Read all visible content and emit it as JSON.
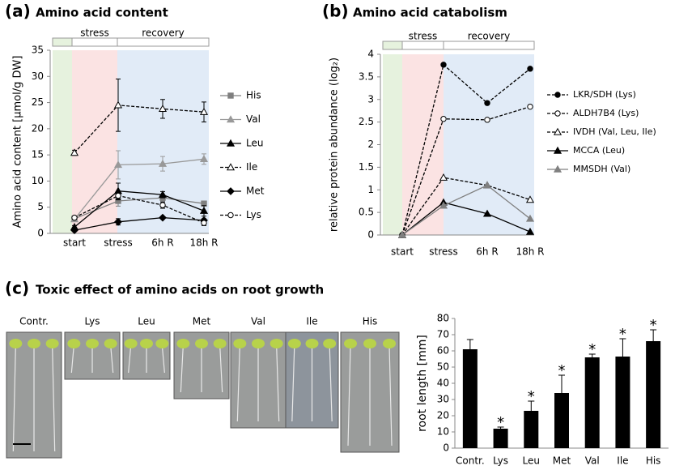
{
  "chart_data": [
    {
      "type": "line",
      "panel": "(a)",
      "title": "Amino acid content",
      "y_label": "Amino acid content [μmol/g DW]",
      "phases": [
        "stress",
        "recovery"
      ],
      "categories": [
        "start",
        "stress",
        "6h R",
        "18h R"
      ],
      "ylim": [
        0,
        35
      ],
      "yticks": [
        0,
        5,
        10,
        15,
        20,
        25,
        30,
        35
      ],
      "series": [
        {
          "name": "His",
          "color": "#7f7f7f",
          "marker": "square",
          "marker_fill": "#7f7f7f",
          "dashed": false,
          "values": [
            2.8,
            6.2,
            6.8,
            5.7
          ],
          "errors": [
            0.3,
            1.0,
            0.6,
            0.3
          ]
        },
        {
          "name": "Val",
          "color": "#999999",
          "marker": "triangle",
          "marker_fill": "#999999",
          "dashed": false,
          "values": [
            2.7,
            13.1,
            13.3,
            14.2
          ],
          "errors": [
            0.3,
            2.7,
            1.4,
            1.0
          ]
        },
        {
          "name": "Leu",
          "color": "#000000",
          "marker": "triangle",
          "marker_fill": "#000000",
          "dashed": false,
          "values": [
            1.2,
            8.1,
            7.4,
            4.3
          ],
          "errors": [
            0.3,
            1.5,
            0.6,
            1.0
          ]
        },
        {
          "name": "Ile",
          "color": "#000000",
          "marker": "triangle",
          "marker_fill": "#ffffff",
          "dashed": true,
          "values": [
            15.4,
            24.5,
            23.8,
            23.2
          ],
          "errors": [
            0.5,
            5.0,
            1.8,
            1.9
          ]
        },
        {
          "name": "Met",
          "color": "#000000",
          "marker": "diamond",
          "marker_fill": "#000000",
          "dashed": false,
          "values": [
            0.6,
            2.2,
            3.0,
            2.5
          ],
          "errors": [
            0.2,
            0.6,
            0.2,
            0.3
          ]
        },
        {
          "name": "Lys",
          "color": "#000000",
          "marker": "circle",
          "marker_fill": "#ffffff",
          "dashed": true,
          "values": [
            3.0,
            7.2,
            5.4,
            2.0
          ],
          "errors": [
            0.3,
            0.8,
            0.6,
            0.5
          ]
        }
      ]
    },
    {
      "type": "line",
      "panel": "(b)",
      "title": "Amino acid catabolism",
      "y_label": "relative protein abundance (log₂)",
      "phases": [
        "stress",
        "recovery"
      ],
      "categories": [
        "start",
        "stress",
        "6h R",
        "18h R"
      ],
      "ylim": [
        0,
        4
      ],
      "yticks": [
        0,
        0.5,
        1,
        1.5,
        2,
        2.5,
        3,
        3.5,
        4
      ],
      "series": [
        {
          "name": "LKR/SDH (Lys)",
          "color": "#000000",
          "marker": "circle",
          "marker_fill": "#000000",
          "dashed": true,
          "values": [
            0,
            3.77,
            2.92,
            3.68
          ]
        },
        {
          "name": "ALDH7B4 (Lys)",
          "color": "#000000",
          "marker": "circle",
          "marker_fill": "#ffffff",
          "dashed": true,
          "values": [
            0,
            2.57,
            2.55,
            2.84
          ]
        },
        {
          "name": "IVDH (Val, Leu, Ile)",
          "color": "#000000",
          "marker": "triangle",
          "marker_fill": "#ffffff",
          "dashed": true,
          "values": [
            0,
            1.27,
            1.1,
            0.78
          ]
        },
        {
          "name": "MCCA (Leu)",
          "color": "#000000",
          "marker": "triangle",
          "marker_fill": "#000000",
          "dashed": false,
          "values": [
            0,
            0.72,
            0.47,
            0.07
          ]
        },
        {
          "name": "MMSDH (Val)",
          "color": "#808080",
          "marker": "triangle",
          "marker_fill": "#808080",
          "dashed": false,
          "values": [
            0,
            0.65,
            1.1,
            0.36
          ]
        }
      ]
    },
    {
      "type": "bar",
      "y_label": "root length [mm]",
      "categories": [
        "Contr.",
        "Lys",
        "Leu",
        "Met",
        "Val",
        "Ile",
        "His"
      ],
      "values": [
        61,
        12,
        23,
        34,
        56,
        56.5,
        66
      ],
      "errors": [
        6,
        1,
        6,
        11,
        2,
        11,
        7
      ],
      "color": "#000000",
      "significance_label": "*",
      "significant": [
        false,
        true,
        true,
        true,
        true,
        true,
        true
      ],
      "ylim": [
        0,
        80
      ],
      "yticks": [
        0,
        10,
        20,
        30,
        40,
        50,
        60,
        70,
        80
      ]
    }
  ],
  "photo_panel": {
    "panel": "(c)",
    "title": "Toxic effect of amino acids on root growth",
    "labels": [
      "Contr.",
      "Lys",
      "Leu",
      "Met",
      "Val",
      "Ile",
      "His"
    ]
  }
}
